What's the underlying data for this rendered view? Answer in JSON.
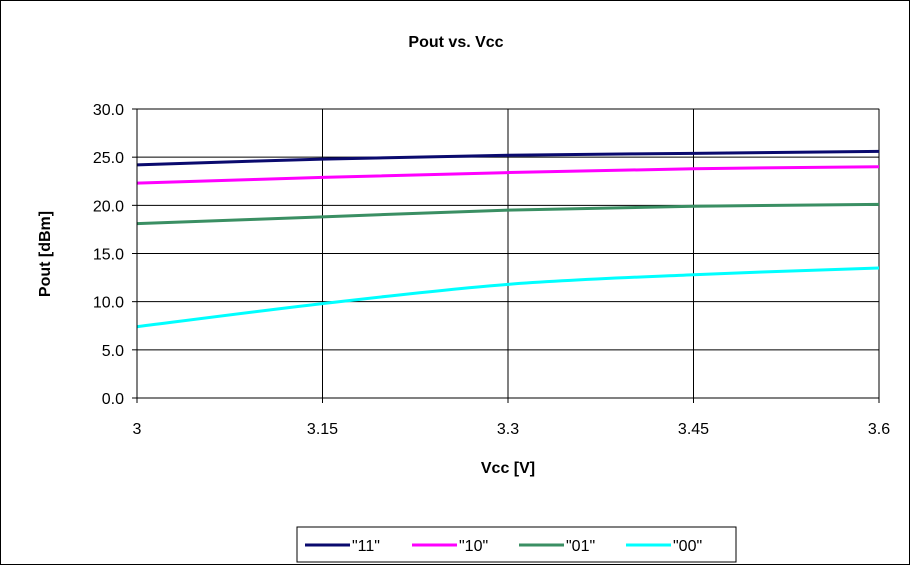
{
  "chart_data": {
    "type": "line",
    "title": "Pout vs. Vcc",
    "xlabel": "Vcc [V]",
    "ylabel": "Pout [dBm]",
    "x": [
      3,
      3.15,
      3.3,
      3.45,
      3.6
    ],
    "x_tick_labels": [
      "3",
      "3.15",
      "3.3",
      "3.45",
      "3.6"
    ],
    "xlim": [
      3,
      3.6
    ],
    "ylim": [
      0,
      30
    ],
    "y_ticks": [
      0,
      5,
      10,
      15,
      20,
      25,
      30
    ],
    "y_tick_labels": [
      "0.0",
      "5.0",
      "10.0",
      "15.0",
      "20.0",
      "25.0",
      "30.0"
    ],
    "grid": true,
    "legend_position": "bottom",
    "series": [
      {
        "name": "\"11\"",
        "color": "#0a0a6e",
        "values": [
          24.2,
          24.8,
          25.2,
          25.4,
          25.6
        ]
      },
      {
        "name": "\"10\"",
        "color": "#ff00ff",
        "values": [
          22.3,
          22.9,
          23.4,
          23.8,
          24.0
        ]
      },
      {
        "name": "\"01\"",
        "color": "#3a8f63",
        "values": [
          18.1,
          18.8,
          19.5,
          19.9,
          20.1
        ]
      },
      {
        "name": "\"00\"",
        "color": "#00ffff",
        "values": [
          7.4,
          9.8,
          11.8,
          12.8,
          13.5
        ]
      }
    ]
  }
}
